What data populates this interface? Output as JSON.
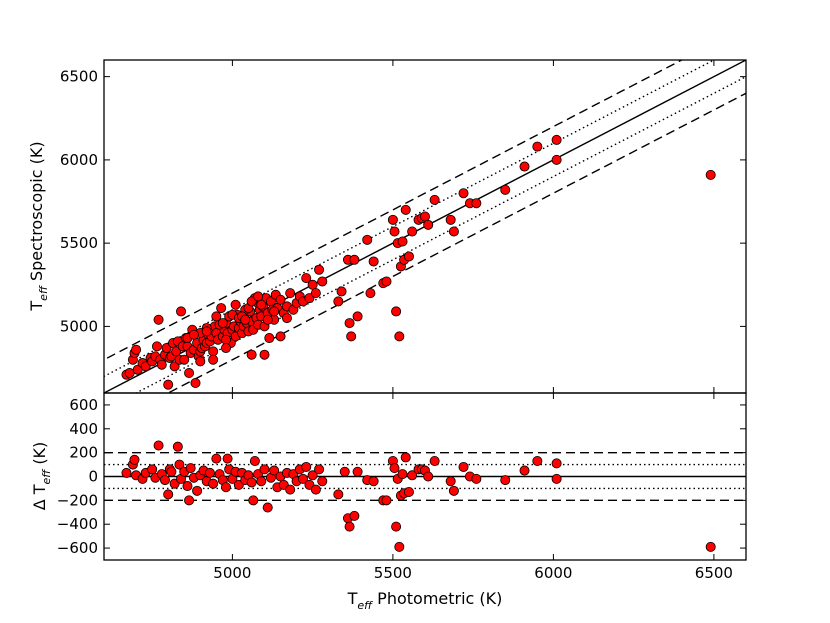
{
  "chart_data": [
    {
      "type": "scatter",
      "panel": "top",
      "ylabel": {
        "main": "T",
        "sub": "eff",
        "rest": " Spectroscopic (K)"
      },
      "xlim": [
        4600,
        6600
      ],
      "ylim": [
        4600,
        6600
      ],
      "yticks": [
        "5000",
        "5500",
        "6000",
        "6500"
      ],
      "ytick_values": [
        5000,
        5500,
        6000,
        6500
      ],
      "marker_color": "#ff0000",
      "reference_lines": [
        {
          "style": "solid",
          "offset": 0
        },
        {
          "style": "dotted",
          "offset": 100
        },
        {
          "style": "dotted",
          "offset": -100
        },
        {
          "style": "dashed",
          "offset": 200
        },
        {
          "style": "dashed",
          "offset": -200
        }
      ],
      "points": [
        [
          4670,
          4710
        ],
        [
          4680,
          4720
        ],
        [
          4690,
          4800
        ],
        [
          4695,
          4840
        ],
        [
          4700,
          4860
        ],
        [
          4705,
          4740
        ],
        [
          4720,
          4780
        ],
        [
          4730,
          4760
        ],
        [
          4745,
          4810
        ],
        [
          4750,
          4790
        ],
        [
          4760,
          4820
        ],
        [
          4765,
          4880
        ],
        [
          4770,
          5040
        ],
        [
          4775,
          4800
        ],
        [
          4780,
          4770
        ],
        [
          4790,
          4830
        ],
        [
          4795,
          4870
        ],
        [
          4800,
          4650
        ],
        [
          4805,
          4810
        ],
        [
          4810,
          4820
        ],
        [
          4815,
          4900
        ],
        [
          4820,
          4760
        ],
        [
          4825,
          4850
        ],
        [
          4830,
          4910
        ],
        [
          4835,
          4800
        ],
        [
          4840,
          5090
        ],
        [
          4845,
          4880
        ],
        [
          4850,
          4800
        ],
        [
          4855,
          4930
        ],
        [
          4860,
          4880
        ],
        [
          4865,
          4720
        ],
        [
          4870,
          4840
        ],
        [
          4875,
          4980
        ],
        [
          4880,
          4860
        ],
        [
          4885,
          4660
        ],
        [
          4890,
          4900
        ],
        [
          4895,
          4820
        ],
        [
          4900,
          4850
        ],
        [
          4905,
          4870
        ],
        [
          4910,
          4920
        ],
        [
          4915,
          4880
        ],
        [
          4920,
          4900
        ],
        [
          4925,
          4950
        ],
        [
          4930,
          4910
        ],
        [
          4935,
          4940
        ],
        [
          4940,
          4850
        ],
        [
          4945,
          5000
        ],
        [
          4950,
          4960
        ],
        [
          4955,
          4920
        ],
        [
          4960,
          5010
        ],
        [
          4965,
          5110
        ],
        [
          4970,
          4940
        ],
        [
          4975,
          4980
        ],
        [
          4980,
          5020
        ],
        [
          4985,
          4960
        ],
        [
          4990,
          5060
        ],
        [
          4995,
          4900
        ],
        [
          5000,
          4980
        ],
        [
          5005,
          5000
        ],
        [
          5010,
          4940
        ],
        [
          5015,
          5070
        ],
        [
          5020,
          4990
        ],
        [
          5025,
          5030
        ],
        [
          5030,
          4960
        ],
        [
          5035,
          5000
        ],
        [
          5040,
          5080
        ],
        [
          5045,
          5020
        ],
        [
          5050,
          4970
        ],
        [
          5055,
          5090
        ],
        [
          5060,
          5030
        ],
        [
          5065,
          4980
        ],
        [
          5070,
          5150
        ],
        [
          5075,
          5050
        ],
        [
          5080,
          5010
        ],
        [
          5085,
          5100
        ],
        [
          5090,
          5060
        ],
        [
          5095,
          5120
        ],
        [
          5100,
          5000
        ],
        [
          5105,
          5170
        ],
        [
          5110,
          5080
        ],
        [
          5115,
          4930
        ],
        [
          5120,
          5150
        ],
        [
          5125,
          5100
        ],
        [
          5130,
          5040
        ],
        [
          5135,
          5190
        ],
        [
          5140,
          5110
        ],
        [
          5150,
          5160
        ],
        [
          5160,
          5080
        ],
        [
          5170,
          5120
        ],
        [
          5180,
          5200
        ],
        [
          5190,
          5100
        ],
        [
          5200,
          5140
        ],
        [
          5210,
          5180
        ],
        [
          5220,
          5150
        ],
        [
          5230,
          5290
        ],
        [
          5240,
          5170
        ],
        [
          5250,
          5250
        ],
        [
          5260,
          5200
        ],
        [
          5270,
          5340
        ],
        [
          5280,
          5270
        ],
        [
          4900,
          4960
        ],
        [
          4920,
          4990
        ],
        [
          4940,
          4800
        ],
        [
          4960,
          5010
        ],
        [
          4980,
          4920
        ],
        [
          5000,
          5070
        ],
        [
          5020,
          5050
        ],
        [
          5040,
          5100
        ],
        [
          5060,
          4830
        ],
        [
          5080,
          5140
        ],
        [
          5100,
          4830
        ],
        [
          4980,
          4870
        ],
        [
          5030,
          5060
        ],
        [
          5050,
          5110
        ],
        [
          5070,
          5170
        ],
        [
          5090,
          5130
        ],
        [
          5110,
          5040
        ],
        [
          5130,
          5090
        ],
        [
          5150,
          4940
        ],
        [
          5170,
          5050
        ],
        [
          4860,
          4930
        ],
        [
          4880,
          4950
        ],
        [
          4900,
          4790
        ],
        [
          4920,
          4970
        ],
        [
          4950,
          5060
        ],
        [
          4970,
          5020
        ],
        [
          5010,
          5130
        ],
        [
          5040,
          5040
        ],
        [
          5060,
          5150
        ],
        [
          5080,
          5180
        ],
        [
          5330,
          5150
        ],
        [
          5340,
          5210
        ],
        [
          5360,
          5400
        ],
        [
          5365,
          5020
        ],
        [
          5370,
          4940
        ],
        [
          5380,
          5400
        ],
        [
          5390,
          5060
        ],
        [
          5420,
          5520
        ],
        [
          5430,
          5200
        ],
        [
          5440,
          5390
        ],
        [
          5470,
          5260
        ],
        [
          5480,
          5270
        ],
        [
          5500,
          5640
        ],
        [
          5505,
          5570
        ],
        [
          5510,
          5090
        ],
        [
          5515,
          5500
        ],
        [
          5520,
          4940
        ],
        [
          5525,
          5360
        ],
        [
          5530,
          5510
        ],
        [
          5535,
          5400
        ],
        [
          5540,
          5700
        ],
        [
          5550,
          5420
        ],
        [
          5560,
          5570
        ],
        [
          5580,
          5640
        ],
        [
          5590,
          5650
        ],
        [
          5600,
          5660
        ],
        [
          5610,
          5610
        ],
        [
          5630,
          5760
        ],
        [
          5680,
          5640
        ],
        [
          5690,
          5570
        ],
        [
          5720,
          5800
        ],
        [
          5740,
          5740
        ],
        [
          5760,
          5740
        ],
        [
          5850,
          5820
        ],
        [
          5910,
          5960
        ],
        [
          5950,
          6080
        ],
        [
          6010,
          6000
        ],
        [
          6010,
          6120
        ],
        [
          6490,
          5910
        ]
      ]
    },
    {
      "type": "scatter",
      "panel": "bottom",
      "xlabel": {
        "main": "T",
        "sub": "eff",
        "rest": " Photometric (K)"
      },
      "ylabel": {
        "main": "Δ T",
        "sub": "eff",
        "rest": " (K)"
      },
      "xlim": [
        4600,
        6600
      ],
      "ylim": [
        -700,
        700
      ],
      "xticks": [
        "5000",
        "5500",
        "6000",
        "6500"
      ],
      "xtick_values": [
        5000,
        5500,
        6000,
        6500
      ],
      "yticks": [
        "600",
        "400",
        "200",
        "0",
        "−200",
        "−400",
        "−600"
      ],
      "ytick_values": [
        600,
        400,
        200,
        0,
        -200,
        -400,
        -600
      ],
      "marker_color": "#ff0000",
      "reference_lines": [
        {
          "style": "solid",
          "value": 0
        },
        {
          "style": "dotted",
          "value": 100
        },
        {
          "style": "dotted",
          "value": -100
        },
        {
          "style": "dashed",
          "value": 200
        },
        {
          "style": "dashed",
          "value": -200
        }
      ],
      "points": [
        [
          4670,
          30
        ],
        [
          4690,
          100
        ],
        [
          4695,
          140
        ],
        [
          4700,
          10
        ],
        [
          4720,
          -20
        ],
        [
          4730,
          30
        ],
        [
          4750,
          60
        ],
        [
          4760,
          -10
        ],
        [
          4770,
          260
        ],
        [
          4780,
          20
        ],
        [
          4790,
          -30
        ],
        [
          4800,
          -150
        ],
        [
          4805,
          60
        ],
        [
          4810,
          40
        ],
        [
          4820,
          -60
        ],
        [
          4830,
          250
        ],
        [
          4835,
          100
        ],
        [
          4840,
          -20
        ],
        [
          4850,
          40
        ],
        [
          4860,
          -80
        ],
        [
          4865,
          -200
        ],
        [
          4870,
          70
        ],
        [
          4880,
          -10
        ],
        [
          4890,
          -120
        ],
        [
          4900,
          10
        ],
        [
          4910,
          50
        ],
        [
          4920,
          -40
        ],
        [
          4930,
          30
        ],
        [
          4940,
          -60
        ],
        [
          4950,
          150
        ],
        [
          4960,
          20
        ],
        [
          4970,
          -30
        ],
        [
          4980,
          -90
        ],
        [
          4985,
          150
        ],
        [
          4990,
          60
        ],
        [
          5000,
          -20
        ],
        [
          5010,
          40
        ],
        [
          5020,
          -70
        ],
        [
          5030,
          30
        ],
        [
          5040,
          -30
        ],
        [
          5050,
          10
        ],
        [
          5060,
          -50
        ],
        [
          5065,
          -200
        ],
        [
          5070,
          130
        ],
        [
          5080,
          20
        ],
        [
          5090,
          -40
        ],
        [
          5100,
          60
        ],
        [
          5110,
          -260
        ],
        [
          5120,
          -10
        ],
        [
          5130,
          50
        ],
        [
          5140,
          -90
        ],
        [
          5150,
          0
        ],
        [
          5160,
          -70
        ],
        [
          5170,
          30
        ],
        [
          5180,
          -110
        ],
        [
          5190,
          20
        ],
        [
          5200,
          -40
        ],
        [
          5210,
          60
        ],
        [
          5220,
          -20
        ],
        [
          5230,
          80
        ],
        [
          5240,
          -70
        ],
        [
          5250,
          10
        ],
        [
          5260,
          -110
        ],
        [
          5270,
          60
        ],
        [
          5280,
          -40
        ],
        [
          5330,
          -150
        ],
        [
          5350,
          40
        ],
        [
          5360,
          -350
        ],
        [
          5365,
          -420
        ],
        [
          5380,
          -330
        ],
        [
          5390,
          40
        ],
        [
          5420,
          -30
        ],
        [
          5440,
          -40
        ],
        [
          5470,
          -200
        ],
        [
          5480,
          -200
        ],
        [
          5500,
          130
        ],
        [
          5505,
          70
        ],
        [
          5510,
          -420
        ],
        [
          5515,
          -20
        ],
        [
          5520,
          -590
        ],
        [
          5525,
          -160
        ],
        [
          5530,
          20
        ],
        [
          5535,
          -140
        ],
        [
          5540,
          160
        ],
        [
          5550,
          -130
        ],
        [
          5560,
          10
        ],
        [
          5580,
          60
        ],
        [
          5590,
          60
        ],
        [
          5600,
          50
        ],
        [
          5610,
          0
        ],
        [
          5630,
          130
        ],
        [
          5680,
          -40
        ],
        [
          5690,
          -120
        ],
        [
          5720,
          80
        ],
        [
          5740,
          0
        ],
        [
          5760,
          -20
        ],
        [
          5850,
          -30
        ],
        [
          5910,
          50
        ],
        [
          5950,
          130
        ],
        [
          6010,
          -20
        ],
        [
          6010,
          110
        ],
        [
          6490,
          -590
        ]
      ]
    }
  ]
}
